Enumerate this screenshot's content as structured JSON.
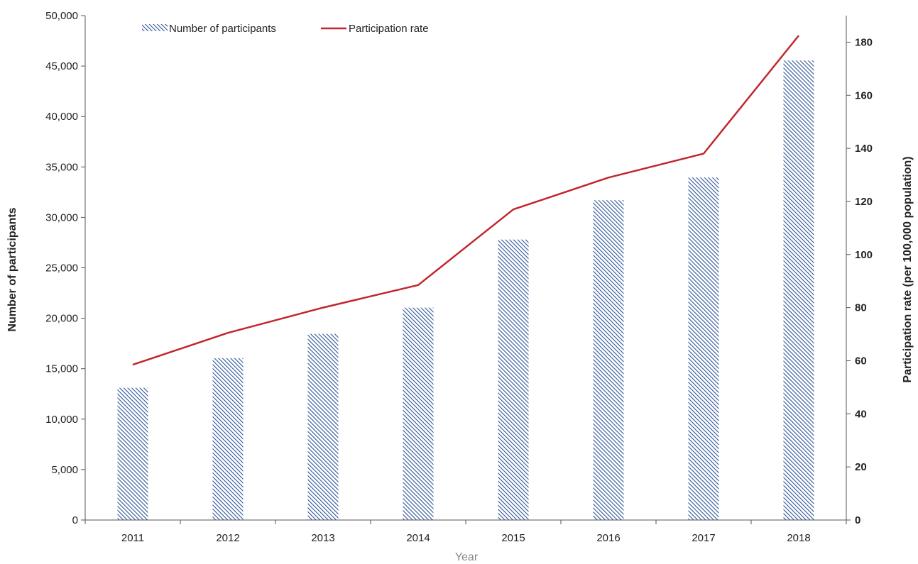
{
  "chart_data": {
    "type": "bar+line",
    "categories": [
      "2011",
      "2012",
      "2013",
      "2014",
      "2015",
      "2016",
      "2017",
      "2018"
    ],
    "series": [
      {
        "name": "Number of participants",
        "type": "bar",
        "axis": "left",
        "values": [
          13100,
          16050,
          18450,
          21050,
          27800,
          31700,
          33950,
          45550
        ]
      },
      {
        "name": "Participation rate",
        "type": "line",
        "axis": "right",
        "values": [
          58.5,
          70.5,
          80,
          88.5,
          117,
          129,
          138,
          182.5
        ]
      }
    ],
    "xlabel": "Year",
    "ylabel_left": "Number of participants",
    "ylabel_right": "Participation rate (per 100,000 population)",
    "ylim_left": [
      0,
      50000
    ],
    "ylim_right": [
      0,
      190
    ],
    "yticks_left": [
      "0",
      "5,000",
      "10,000",
      "15,000",
      "20,000",
      "25,000",
      "30,000",
      "35,000",
      "40,000",
      "45,000",
      "50,000"
    ],
    "yticks_right": [
      "0",
      "20",
      "40",
      "60",
      "80",
      "100",
      "120",
      "140",
      "160",
      "180"
    ],
    "legend_position": "top-left",
    "grid": false,
    "colors": {
      "bar": "#2f5597",
      "line": "#c0272d",
      "axis": "#555555"
    }
  }
}
